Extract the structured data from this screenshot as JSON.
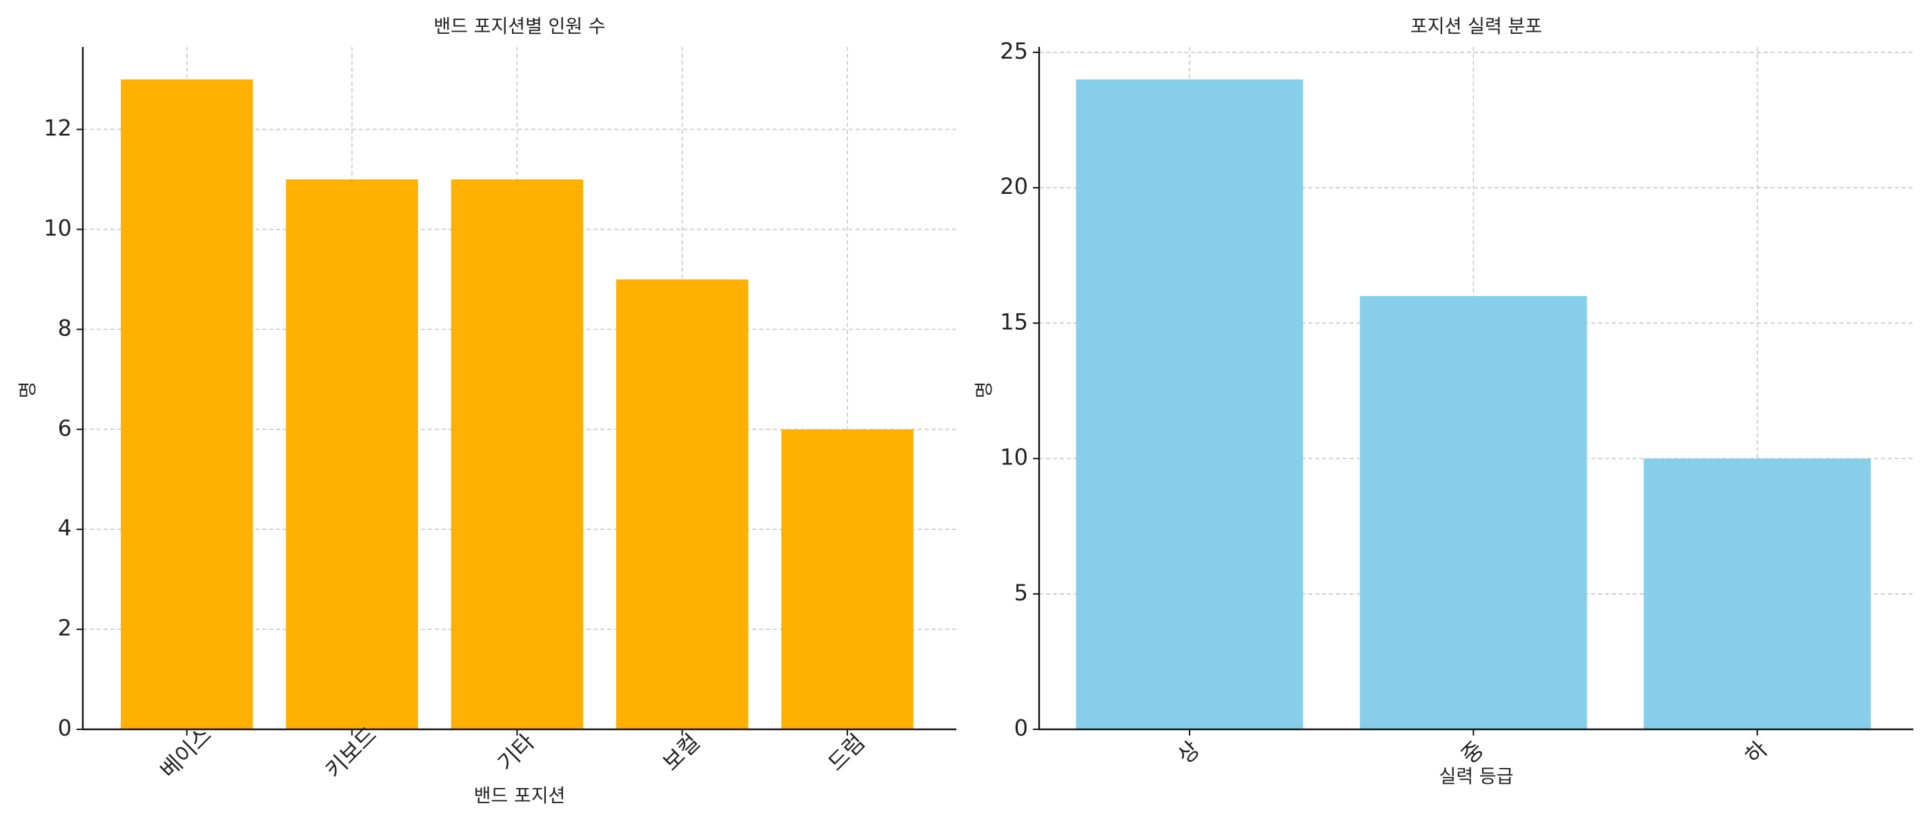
{
  "chart_data": [
    {
      "type": "bar",
      "title": "밴드 포지션별 인원 수",
      "x_label": "밴드 포지션",
      "y_label": "명",
      "categories": [
        "베이스",
        "키보드",
        "기타",
        "보컬",
        "드럼"
      ],
      "values": [
        13,
        11,
        11,
        9,
        6
      ],
      "color": "#ffb000",
      "ylim": [
        0,
        13.65
      ],
      "yticks": [
        0,
        2,
        4,
        6,
        8,
        10,
        12
      ],
      "grid": true
    },
    {
      "type": "bar",
      "title": "포지션 실력 분포",
      "x_label": "실력 등급",
      "y_label": "명",
      "categories": [
        "상",
        "중",
        "하"
      ],
      "values": [
        24,
        16,
        10
      ],
      "color": "#87ceeb",
      "ylim": [
        0,
        25.2
      ],
      "yticks": [
        0,
        5,
        10,
        15,
        20,
        25
      ],
      "grid": true
    }
  ]
}
